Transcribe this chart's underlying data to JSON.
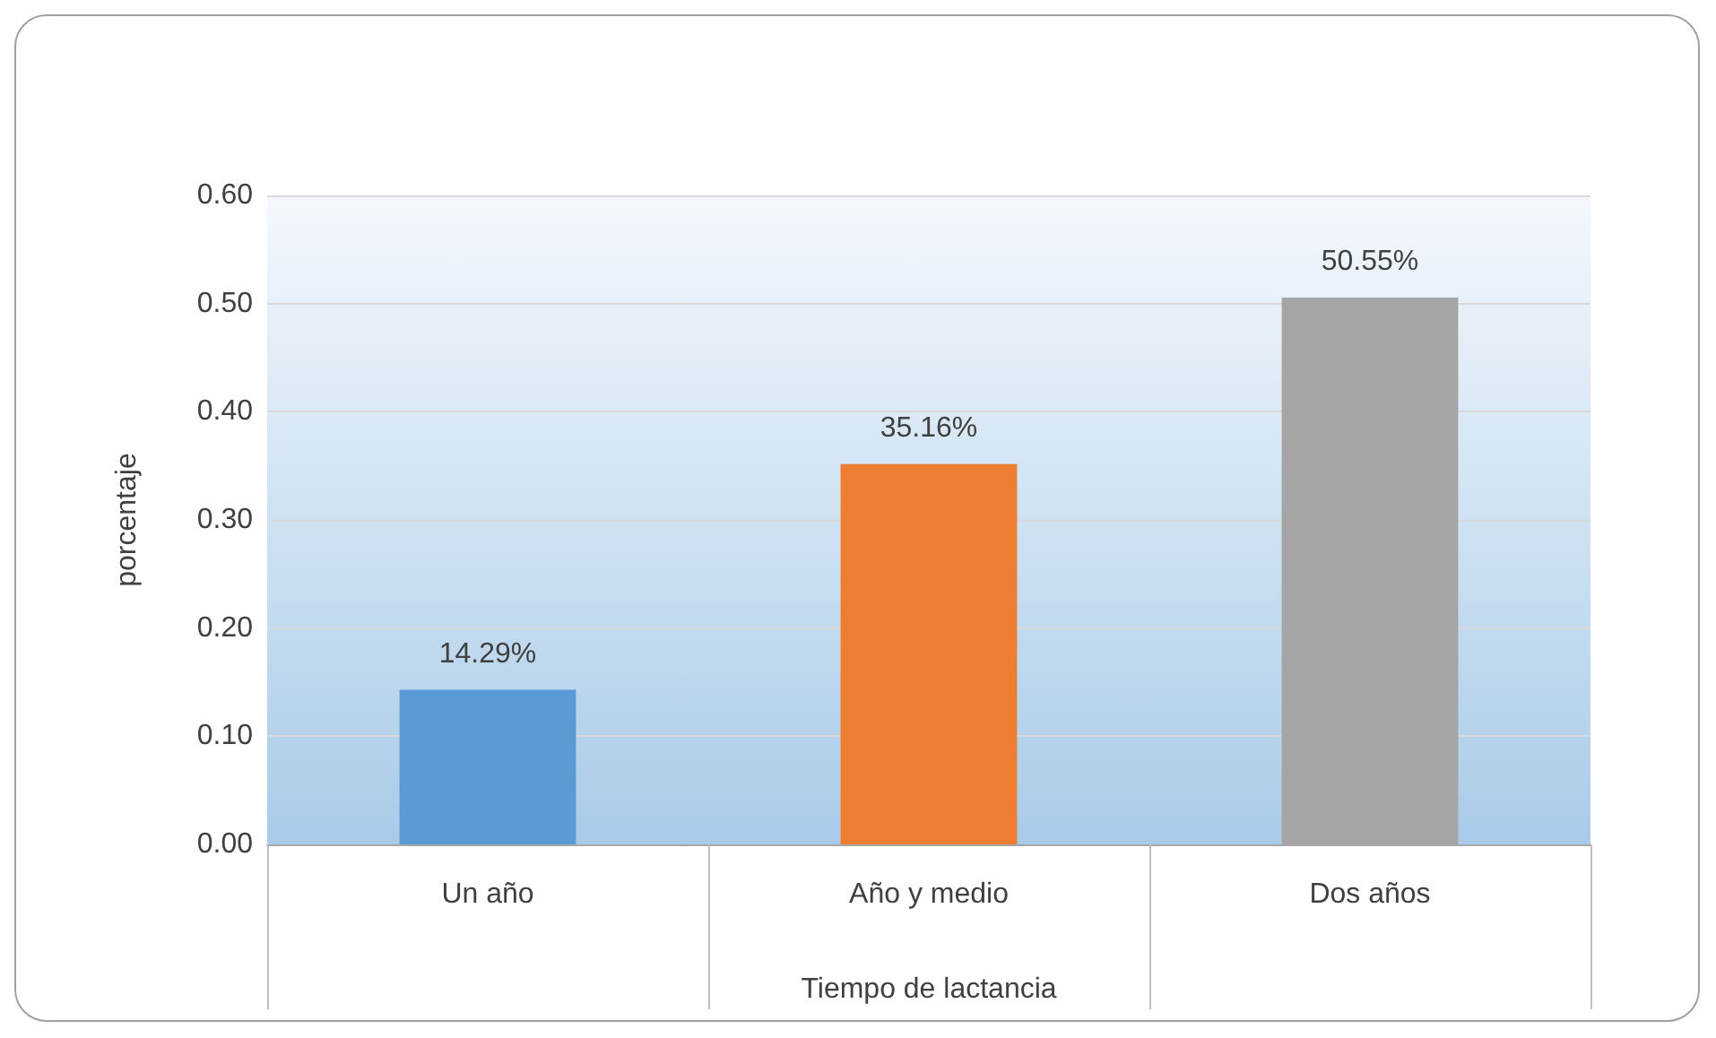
{
  "chart_data": {
    "type": "bar",
    "xlabel": "Tiempo de lactancia",
    "ylabel": "porcentaje",
    "categories": [
      "Un año",
      "Año y medio",
      "Dos años"
    ],
    "values": [
      0.1429,
      0.3516,
      0.5055
    ],
    "colors": [
      "#5b9bd5",
      "#ed7d31",
      "#a5a5a5"
    ],
    "value_labels": [
      "14.29%",
      "35.16%",
      "50.55%"
    ],
    "ylim": [
      0,
      0.6
    ],
    "yticks": [
      {
        "value": 0,
        "label": "0.00"
      },
      {
        "value": 0.1,
        "label": "0.10"
      },
      {
        "value": 0.2,
        "label": "0.20"
      },
      {
        "value": 0.3,
        "label": "0.30"
      },
      {
        "value": 0.4,
        "label": "0.40"
      },
      {
        "value": 0.5,
        "label": "0.50"
      },
      {
        "value": 0.6,
        "label": "0.60"
      }
    ],
    "grid": "y"
  }
}
